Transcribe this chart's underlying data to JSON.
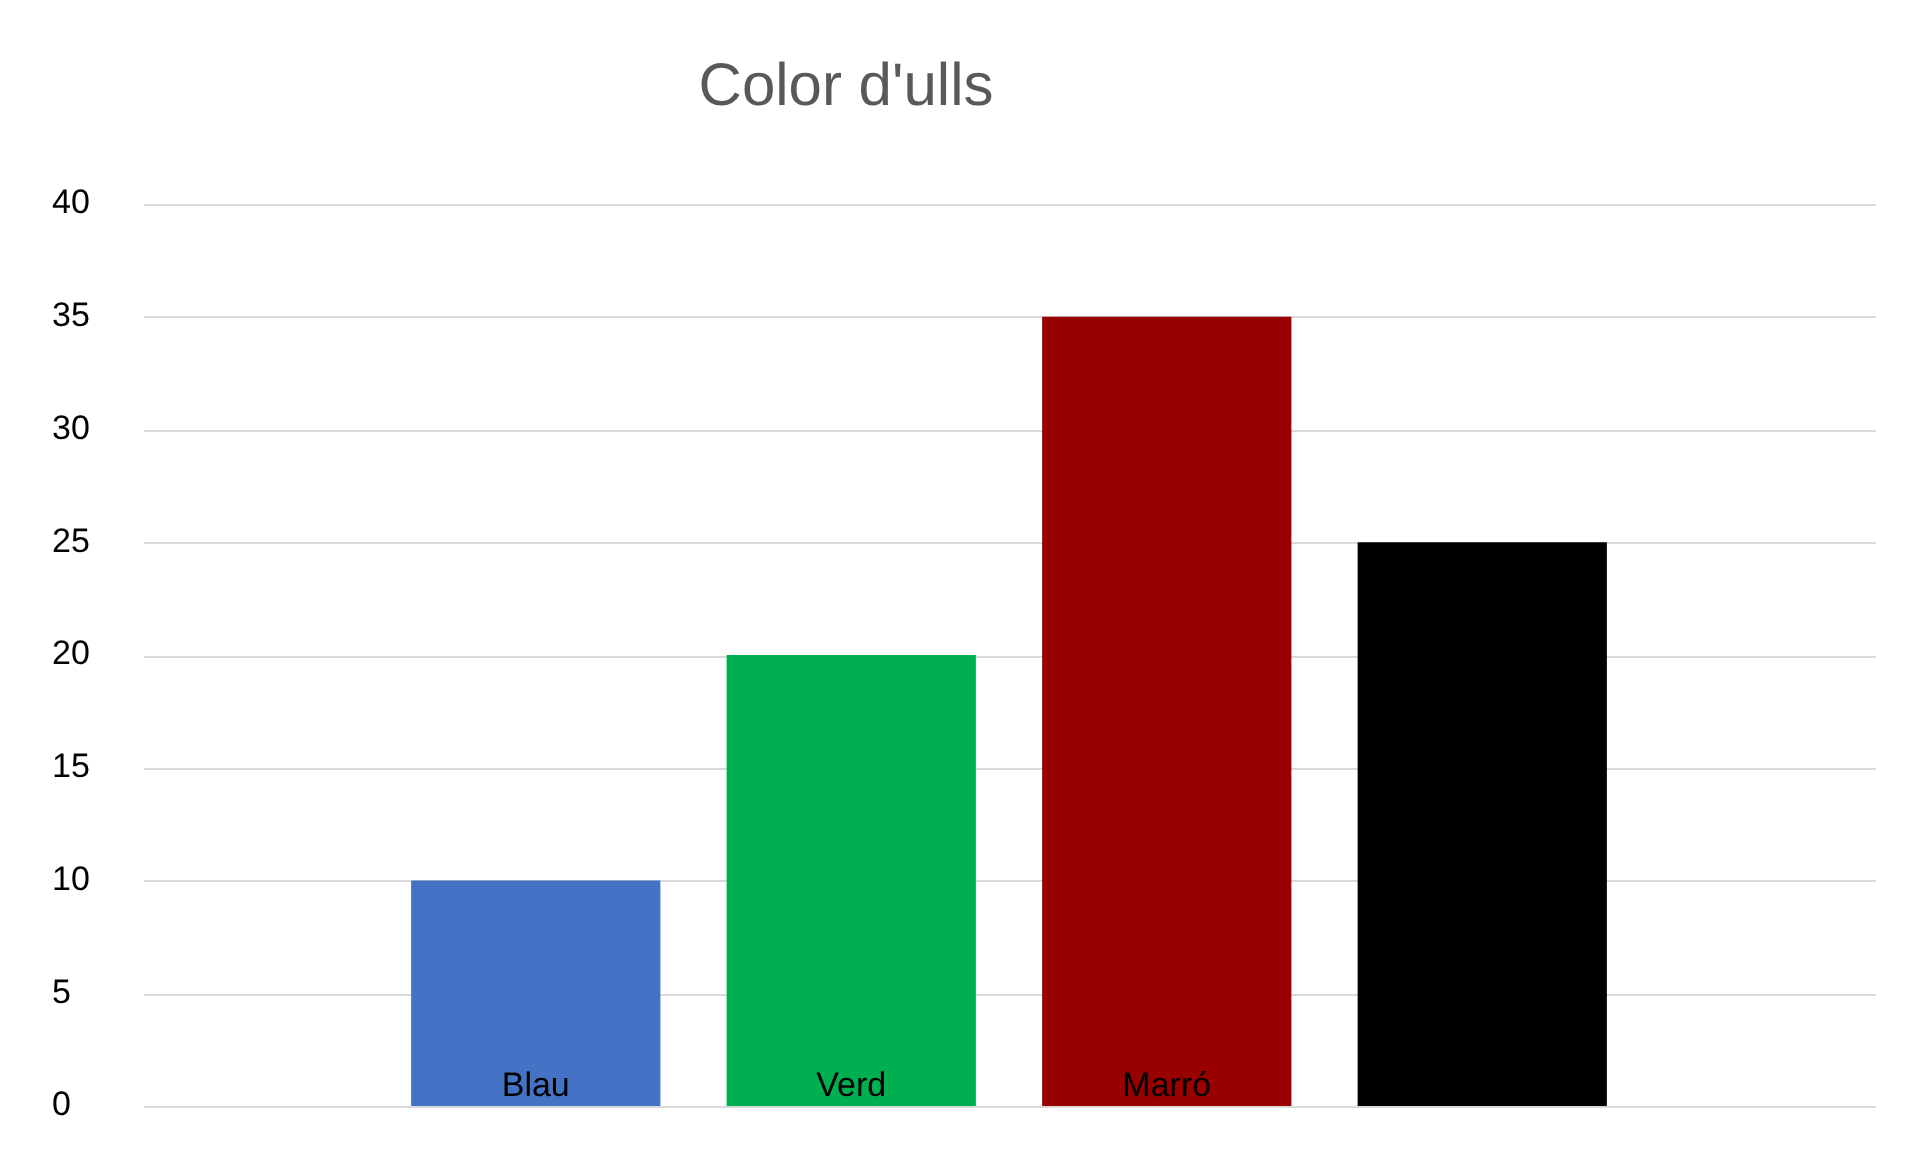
{
  "chart_data": {
    "type": "bar",
    "title": "Color d'ulls",
    "categories": [
      "Blau",
      "Verd",
      "Marró",
      null
    ],
    "values": [
      10,
      20,
      35,
      25
    ],
    "colors": [
      "#4472c4",
      "#00b050",
      "#990000",
      "#000000"
    ],
    "ylim": [
      0,
      40
    ],
    "yticks": [
      0,
      5,
      10,
      15,
      20,
      25,
      30,
      35,
      40
    ],
    "grid": "y",
    "legend": false
  }
}
